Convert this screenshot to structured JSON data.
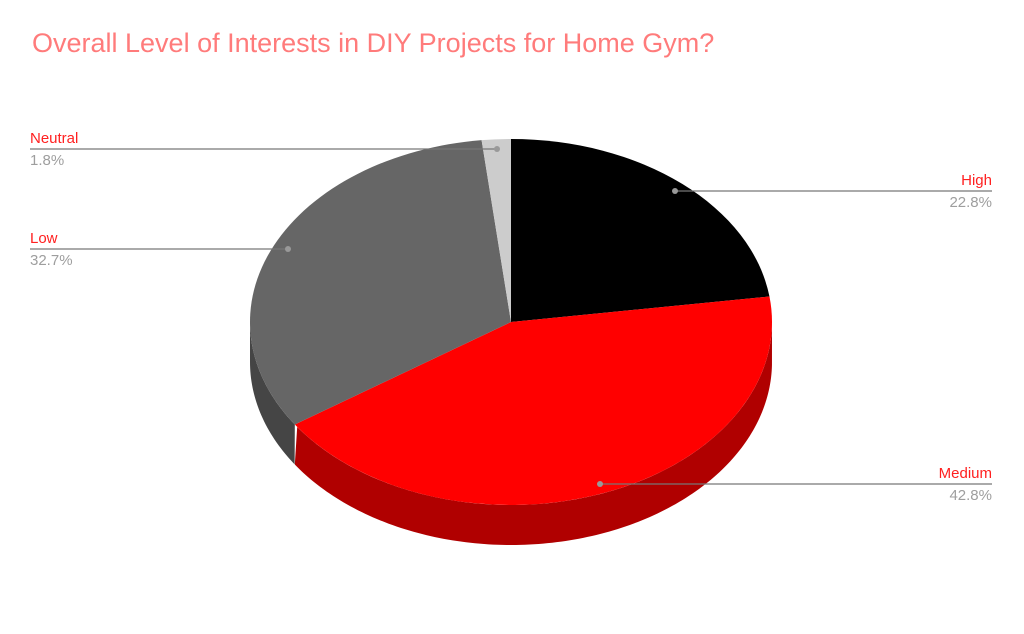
{
  "chart_data": {
    "type": "pie",
    "style": "3d",
    "title": "Overall Level of Interests in DIY Projects for Home Gym?",
    "slices": [
      {
        "label": "High",
        "value": 22.8,
        "display": "22.8%",
        "color": "#000000",
        "side_color": "#000000"
      },
      {
        "label": "Medium",
        "value": 42.8,
        "display": "42.8%",
        "color": "#ff0000",
        "side_color": "#b00000"
      },
      {
        "label": "Low",
        "value": 32.7,
        "display": "32.7%",
        "color": "#666666",
        "side_color": "#454545"
      },
      {
        "label": "Neutral",
        "value": 1.8,
        "display": "1.8%",
        "color": "#cccccc",
        "side_color": "#999999"
      }
    ],
    "start_angle": "12 o'clock",
    "direction": "clockwise",
    "title_color": "#ff7b7b",
    "label_color": "#ff2020",
    "percent_color": "#9e9e9e",
    "legend": "none"
  }
}
